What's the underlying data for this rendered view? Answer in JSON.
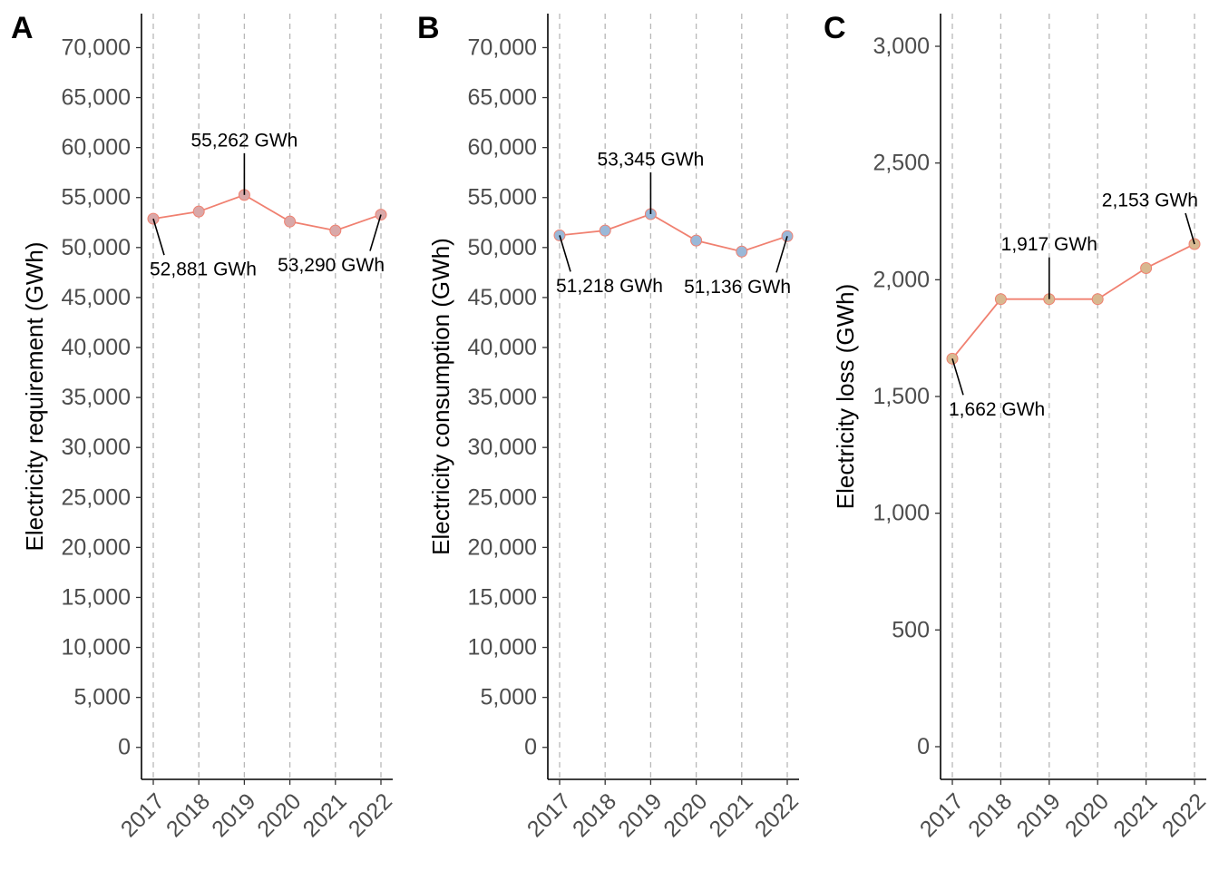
{
  "chart_data": [
    {
      "type": "line",
      "panel_label": "A",
      "ylabel": "Electricity requirement (GWh)",
      "xlabel": "",
      "categories": [
        "2017",
        "2018",
        "2019",
        "2020",
        "2021",
        "2022"
      ],
      "values": [
        52881,
        53600,
        55262,
        52600,
        51700,
        53290
      ],
      "ylim": [
        -3200,
        73400
      ],
      "yticks": [
        0,
        5000,
        10000,
        15000,
        20000,
        25000,
        30000,
        35000,
        40000,
        45000,
        50000,
        55000,
        60000,
        65000,
        70000
      ],
      "ytick_labels": [
        "0",
        "5,000",
        "10,000",
        "15,000",
        "20,000",
        "25,000",
        "30,000",
        "35,000",
        "40,000",
        "45,000",
        "50,000",
        "55,000",
        "60,000",
        "65,000",
        "70,000"
      ],
      "line_color": "#f08070",
      "point_fill": "#d9a8a8",
      "grid_vertical": true,
      "annotations": [
        {
          "index": 0,
          "text": "52,881 GWh",
          "placement": "below-right"
        },
        {
          "index": 2,
          "text": "55,262 GWh",
          "placement": "above"
        },
        {
          "index": 5,
          "text": "53,290 GWh",
          "placement": "below-left"
        }
      ]
    },
    {
      "type": "line",
      "panel_label": "B",
      "ylabel": "Electricity consumption (GWh)",
      "xlabel": "",
      "categories": [
        "2017",
        "2018",
        "2019",
        "2020",
        "2021",
        "2022"
      ],
      "values": [
        51218,
        51700,
        53345,
        50700,
        49600,
        51136
      ],
      "ylim": [
        -3200,
        73400
      ],
      "yticks": [
        0,
        5000,
        10000,
        15000,
        20000,
        25000,
        30000,
        35000,
        40000,
        45000,
        50000,
        55000,
        60000,
        65000,
        70000
      ],
      "ytick_labels": [
        "0",
        "5,000",
        "10,000",
        "15,000",
        "20,000",
        "25,000",
        "30,000",
        "35,000",
        "40,000",
        "45,000",
        "50,000",
        "55,000",
        "60,000",
        "65,000",
        "70,000"
      ],
      "line_color": "#f08070",
      "point_fill": "#9ab8d8",
      "grid_vertical": true,
      "annotations": [
        {
          "index": 0,
          "text": "51,218 GWh",
          "placement": "below-right"
        },
        {
          "index": 2,
          "text": "53,345 GWh",
          "placement": "above"
        },
        {
          "index": 5,
          "text": "51,136 GWh",
          "placement": "below-left"
        }
      ]
    },
    {
      "type": "line",
      "panel_label": "C",
      "ylabel": "Electricity loss (GWh)",
      "xlabel": "",
      "categories": [
        "2017",
        "2018",
        "2019",
        "2020",
        "2021",
        "2022"
      ],
      "values": [
        1662,
        1917,
        1917,
        1917,
        2050,
        2153
      ],
      "ylim": [
        -140,
        3140
      ],
      "yticks": [
        0,
        500,
        1000,
        1500,
        2000,
        2500,
        3000
      ],
      "ytick_labels": [
        "0",
        "500",
        "1,000",
        "1,500",
        "2,000",
        "2,500",
        "3,000"
      ],
      "line_color": "#f08070",
      "point_fill": "#d8b890",
      "grid_vertical": true,
      "annotations": [
        {
          "index": 0,
          "text": "1,662 GWh",
          "placement": "below-right"
        },
        {
          "index": 2,
          "text": "1,917 GWh",
          "placement": "above"
        },
        {
          "index": 5,
          "text": "2,153 GWh",
          "placement": "above-left"
        }
      ]
    }
  ]
}
